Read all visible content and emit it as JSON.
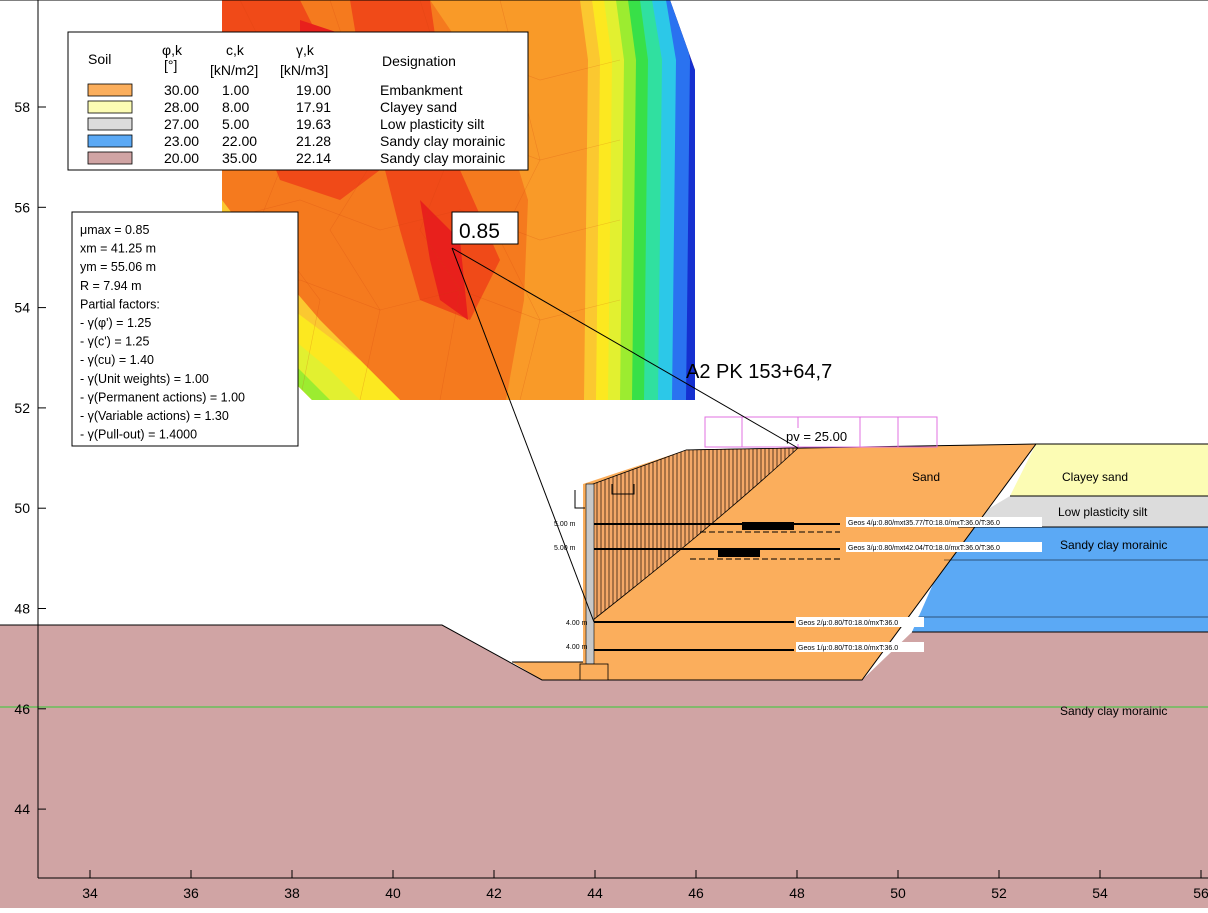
{
  "legend": {
    "headers": {
      "soil": "Soil",
      "phi": "φ,k",
      "phi_unit": "[°]",
      "c": "c,k",
      "c_unit": "[kN/m2]",
      "gamma": "γ,k",
      "gamma_unit": "[kN/m3]",
      "designation": "Designation"
    },
    "rows": [
      {
        "phi": "30.00",
        "c": "1.00",
        "gamma": "19.00",
        "designation": "Embankment",
        "color": "#FBAE5C"
      },
      {
        "phi": "28.00",
        "c": "8.00",
        "gamma": "17.91",
        "designation": "Clayey sand",
        "color": "#FCFCB4"
      },
      {
        "phi": "27.00",
        "c": "5.00",
        "gamma": "19.63",
        "designation": "Low plasticity silt",
        "color": "#DCDCDC"
      },
      {
        "phi": "23.00",
        "c": "22.00",
        "gamma": "21.28",
        "designation": "Sandy clay morainic",
        "color": "#5BA9F5"
      },
      {
        "phi": "20.00",
        "c": "35.00",
        "gamma": "22.14",
        "designation": "Sandy clay morainic",
        "color": "#D0A4A4"
      }
    ]
  },
  "results": {
    "lines": [
      "μmax = 0.85",
      "xm = 41.25 m",
      "ym = 55.06 m",
      "R = 7.94 m",
      "Partial factors:",
      " - γ(φ') = 1.25",
      " - γ(c') = 1.25",
      " - γ(cu) = 1.40",
      " - γ(Unit weights) = 1.00",
      " - γ(Permanent actions) = 1.00",
      " - γ(Variable actions) = 1.30",
      " - γ(Pull-out) = 1.4000"
    ]
  },
  "critical_value_label": "0.85",
  "section_title": "A2 PK 153+64,7",
  "surcharge_label": "pv = 25.00",
  "soil_labels": {
    "sand": "Sand",
    "clayey_sand": "Clayey sand",
    "low_plasticity_silt": "Low plasticity silt",
    "sandy_clay_morainic_upper": "Sandy clay morainic",
    "sandy_clay_morainic_lower": "Sandy clay morainic"
  },
  "reinforcements": [
    {
      "length_label": "5.00 m",
      "label": "Geos 4/μ:0.80/mxt35.77/T0:18.0/mxT:36.0/T:36.0"
    },
    {
      "length_label": "5.00 m",
      "label": "Geos 3/μ:0.80/mxt42.04/T0:18.0/mxT:36.0/T:36.0"
    },
    {
      "length_label": "4.00 m",
      "label": "Geos 2/μ:0.80/T0:18.0/mxT:36.0"
    },
    {
      "length_label": "4.00 m",
      "label": "Geos 1/μ:0.80/T0:18.0/mxT:36.0"
    }
  ],
  "axes": {
    "x_ticks": [
      "34",
      "36",
      "38",
      "40",
      "42",
      "44",
      "46",
      "48",
      "50",
      "52",
      "54",
      "56"
    ],
    "y_ticks": [
      "58",
      "56",
      "54",
      "52",
      "50",
      "48",
      "46",
      "44"
    ]
  },
  "colors": {
    "embankment": "#FBAE5C",
    "clayey_sand": "#FCFCB4",
    "silt": "#DCDCDC",
    "morainic_upper": "#5BA9F5",
    "morainic_lower": "#D0A4A4",
    "water_line": "#33CC33",
    "surcharge": "#E070E0"
  }
}
